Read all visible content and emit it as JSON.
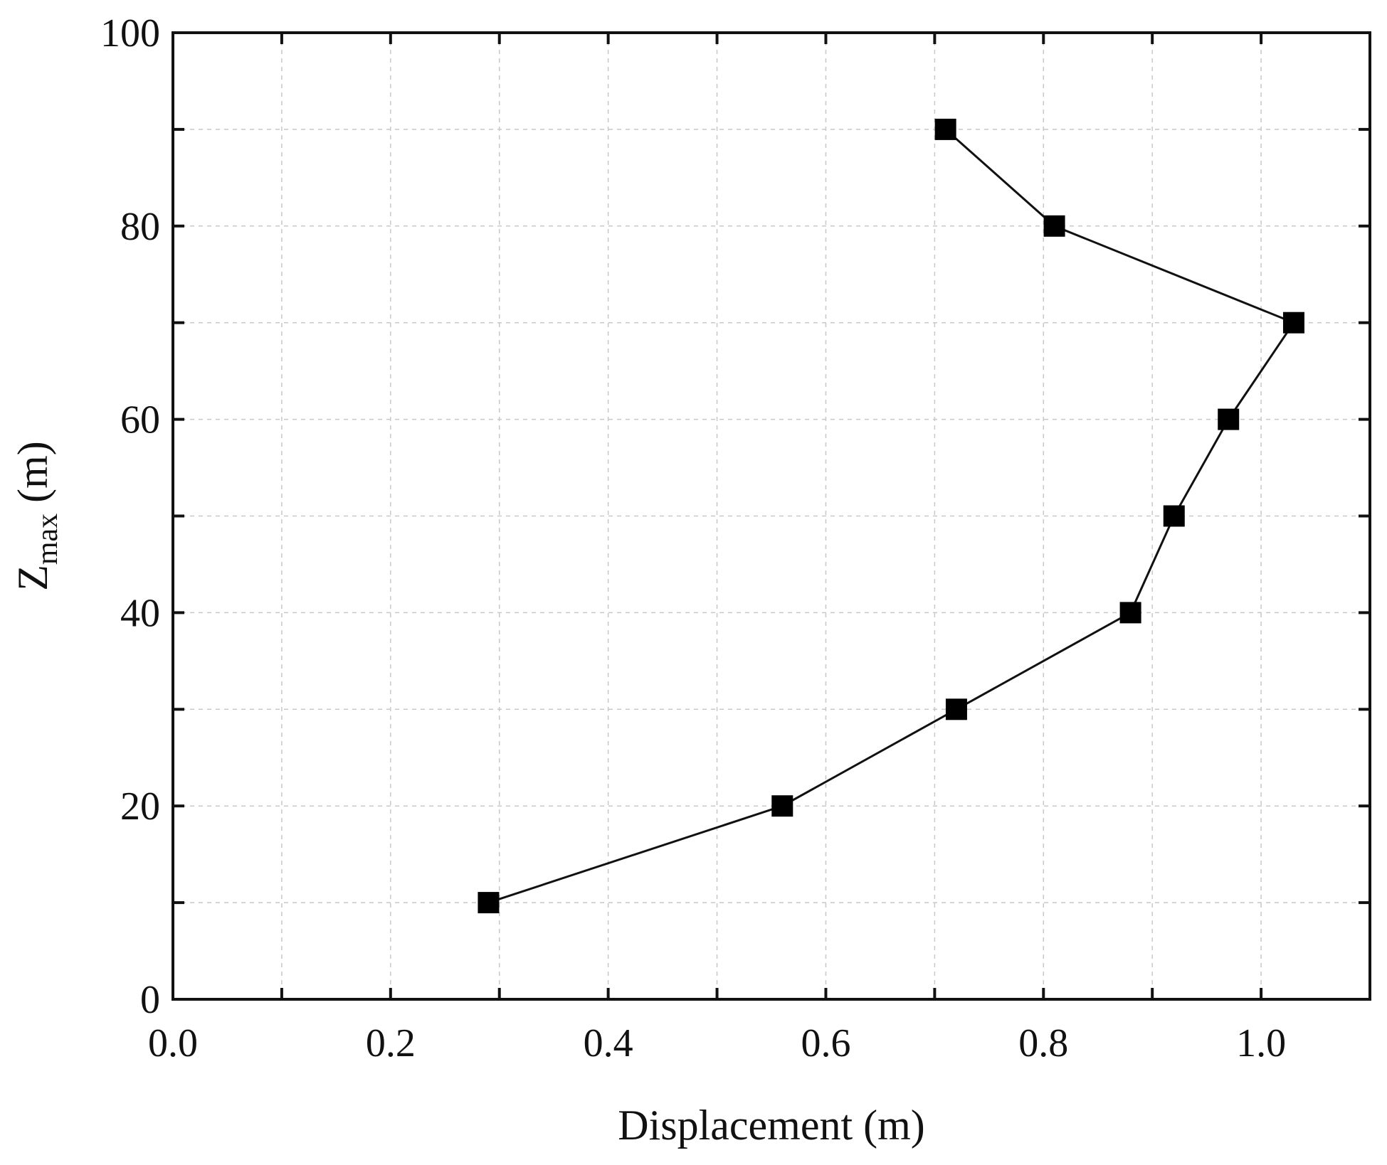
{
  "chart_data": {
    "type": "line",
    "title": "",
    "xlabel": "Displacement (m)",
    "ylabel_main": "Z",
    "ylabel_sub": "max",
    "ylabel_tail": " (m)",
    "xlim": [
      0.0,
      1.1
    ],
    "ylim": [
      0,
      100
    ],
    "xticks": [
      0.0,
      0.2,
      0.4,
      0.6,
      0.8,
      1.0
    ],
    "xtick_labels": [
      "0.0",
      "0.2",
      "0.4",
      "0.6",
      "0.8",
      "1.0"
    ],
    "xminor": [
      0.1,
      0.3,
      0.5,
      0.7,
      0.9,
      1.1
    ],
    "yticks": [
      0,
      20,
      40,
      60,
      80,
      100
    ],
    "ytick_labels": [
      "0",
      "20",
      "40",
      "60",
      "80",
      "100"
    ],
    "yminor": [
      10,
      30,
      50,
      70,
      90
    ],
    "grid": true,
    "marker": "square",
    "line_color": "#000000",
    "series": [
      {
        "x": [
          0.29,
          0.56,
          0.72,
          0.88,
          0.92,
          0.97,
          1.03,
          0.81,
          0.71
        ],
        "y": [
          10,
          20,
          30,
          40,
          50,
          60,
          70,
          80,
          90
        ]
      }
    ]
  }
}
